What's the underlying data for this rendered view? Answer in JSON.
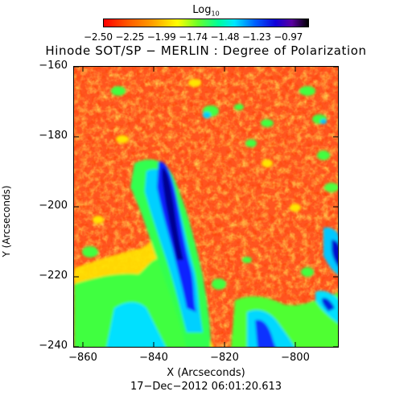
{
  "colorbar": {
    "label": "Log",
    "label_sub": "10",
    "ticks_text": "−2.50 −2.25 −1.99 −1.74 −1.48 −1.23 −0.97"
  },
  "title": "Hinode SOT/SP − MERLIN : Degree of Polarization",
  "axes": {
    "y_ticks": [
      "−160",
      "−180",
      "−200",
      "−220",
      "−240"
    ],
    "x_ticks": [
      "−860",
      "−840",
      "−820",
      "−800"
    ],
    "xlabel": "X (Arcseconds)",
    "ylabel": "Y (Arcseconds)"
  },
  "timestamp": "17−Dec−2012 06:01:20.613",
  "colors": {
    "background_field": "#ff5a1e",
    "low": "#ff0000",
    "mid": "#ffff00",
    "high": "#0000c8"
  }
}
